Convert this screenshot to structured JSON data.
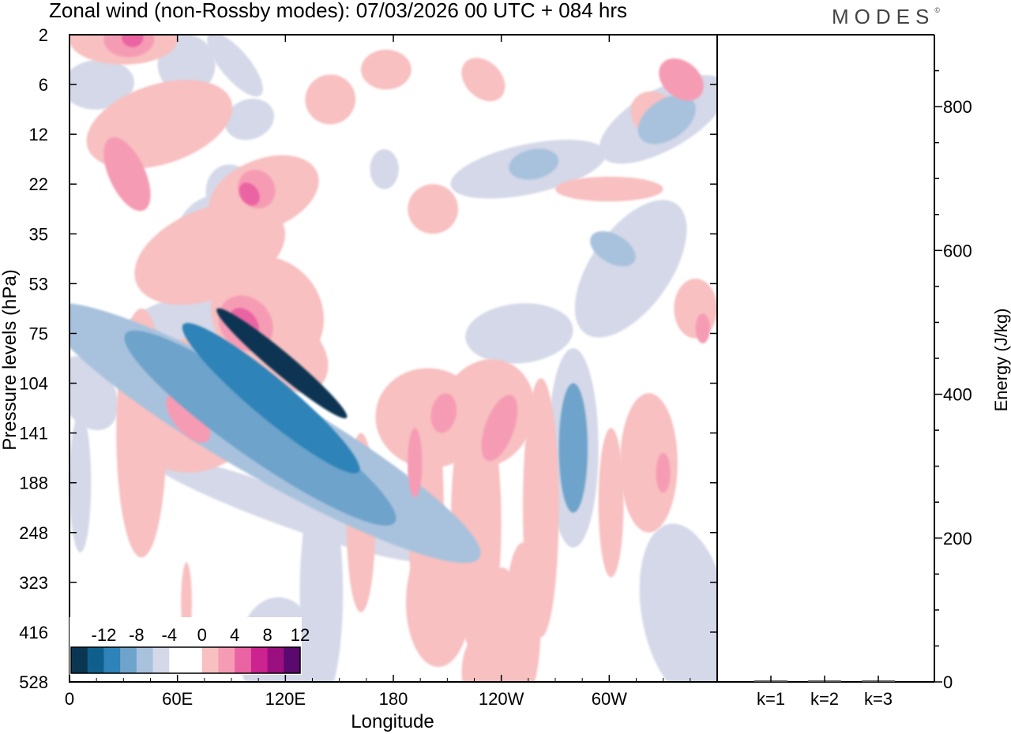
{
  "title": {
    "text": "Zonal wind (non-Rossby modes):  07/03/2026  00 UTC  + 084 hrs"
  },
  "brand": {
    "name": "MODES",
    "mark": "©"
  },
  "chart_data": [
    {
      "type": "heatmap",
      "title": "Zonal wind (non-Rossby modes):  07/03/2026  00 UTC  + 084 hrs",
      "xlabel": "Longitude",
      "ylabel": "Pressure levels (hPa)",
      "x_ticks": [
        "0",
        "60E",
        "120E",
        "180",
        "120W",
        "60W"
      ],
      "x_tick_degrees": [
        0,
        60,
        120,
        180,
        240,
        300
      ],
      "xlim": [
        0,
        360
      ],
      "y_ticks": [
        "2",
        "6",
        "12",
        "22",
        "35",
        "53",
        "75",
        "104",
        "141",
        "188",
        "248",
        "323",
        "416",
        "528"
      ],
      "colorbar": {
        "labels": [
          "-12",
          "-8",
          "-4",
          "0",
          "4",
          "8",
          "12"
        ],
        "colors": [
          "#0a3652",
          "#0f5f8c",
          "#2e83b8",
          "#6ea3cb",
          "#a8c2dd",
          "#d4d8e8",
          "#ffffff",
          "#ffffff",
          "#f8c0c0",
          "#f69bb4",
          "#ea63a2",
          "#cc2390",
          "#9c0f80",
          "#5a0a6e"
        ]
      },
      "blobs": [
        {
          "lon": 118,
          "lev": 6.6,
          "dlon": 6,
          "dlev": 1.7,
          "angle": -50,
          "cls": -6
        },
        {
          "lon": 112,
          "lev": 7.3,
          "dlon": 11,
          "dlev": 2.3,
          "angle": -50,
          "cls": -4
        },
        {
          "lon": 106,
          "lev": 7.9,
          "dlon": 17,
          "dlev": 3.3,
          "angle": -55,
          "cls": -3
        },
        {
          "lon": 108,
          "lev": 8.0,
          "dlon": 24,
          "dlev": 5.0,
          "angle": -60,
          "cls": -2
        },
        {
          "lon": 120,
          "lev": 9.5,
          "dlon": 10,
          "dlev": 3.0,
          "angle": -70,
          "cls": -1
        },
        {
          "lon": 98,
          "lev": 5.2,
          "dlon": 18,
          "dlev": 1.1,
          "angle": -28,
          "cls": -1
        },
        {
          "lon": 85,
          "lev": 4.2,
          "dlon": 26,
          "dlev": 1.0,
          "angle": -25,
          "cls": -1
        },
        {
          "lon": 60,
          "lev": 6.0,
          "dlon": 38,
          "dlev": 0.7,
          "angle": -18,
          "cls": -1
        },
        {
          "lon": 10,
          "lev": 7.2,
          "dlon": 15,
          "dlev": 0.8,
          "angle": -30,
          "cls": -1
        },
        {
          "lon": 16,
          "lev": 1.0,
          "dlon": 20,
          "dlev": 0.5,
          "angle": -5,
          "cls": -1
        },
        {
          "lon": 65,
          "lev": 0.6,
          "dlon": 16,
          "dlev": 0.6,
          "angle": -10,
          "cls": -1
        },
        {
          "lon": 90,
          "lev": 3.2,
          "dlon": 14,
          "dlev": 0.6,
          "angle": -15,
          "cls": -1
        },
        {
          "lon": 6,
          "lev": 9.0,
          "dlon": 6,
          "dlev": 1.4,
          "angle": 0,
          "cls": -1
        },
        {
          "lon": 140,
          "lev": 11.2,
          "dlon": 12,
          "dlev": 2.2,
          "angle": 0,
          "cls": -1
        },
        {
          "lon": 116,
          "lev": 12.4,
          "dlon": 22,
          "dlev": 1.1,
          "angle": 0,
          "cls": -1
        },
        {
          "lon": 280,
          "lev": 8.3,
          "dlon": 8,
          "dlev": 1.3,
          "angle": 0,
          "cls": -3
        },
        {
          "lon": 280,
          "lev": 8.3,
          "dlon": 14,
          "dlev": 2.0,
          "angle": 0,
          "cls": -1
        },
        {
          "lon": 342,
          "lev": 11.6,
          "dlon": 24,
          "dlev": 1.8,
          "angle": -10,
          "cls": -1
        },
        {
          "lon": 312,
          "lev": 4.7,
          "dlon": 44,
          "dlev": 0.8,
          "angle": -55,
          "cls": -1
        },
        {
          "lon": 302,
          "lev": 4.3,
          "dlon": 8,
          "dlev": 0.5,
          "angle": -60,
          "cls": -2
        },
        {
          "lon": 330,
          "lev": 1.7,
          "dlon": 40,
          "dlev": 0.6,
          "angle": -30,
          "cls": -1
        },
        {
          "lon": 332,
          "lev": 1.7,
          "dlon": 18,
          "dlev": 0.4,
          "angle": -35,
          "cls": -2
        },
        {
          "lon": 255,
          "lev": 2.7,
          "dlon": 44,
          "dlev": 0.5,
          "angle": -12,
          "cls": -1
        },
        {
          "lon": 258,
          "lev": 2.6,
          "dlon": 14,
          "dlev": 0.3,
          "angle": -12,
          "cls": -2
        },
        {
          "lon": 250,
          "lev": 6.0,
          "dlon": 30,
          "dlev": 0.6,
          "angle": -5,
          "cls": -1
        },
        {
          "lon": 92,
          "lev": 0.6,
          "dlon": 8,
          "dlev": 0.8,
          "angle": -40,
          "cls": -1
        },
        {
          "lon": 100,
          "lev": 1.7,
          "dlon": 14,
          "dlev": 0.4,
          "angle": -20,
          "cls": -1
        },
        {
          "lon": 175,
          "lev": 2.7,
          "dlon": 8,
          "dlev": 0.4,
          "angle": 0,
          "cls": -1
        },
        {
          "lon": 108,
          "lev": 3.2,
          "dlon": 32,
          "dlev": 0.7,
          "angle": -22,
          "cls": 1
        },
        {
          "lon": 104,
          "lev": 3.1,
          "dlon": 10,
          "dlev": 0.4,
          "angle": -35,
          "cls": 2
        },
        {
          "lon": 100,
          "lev": 3.2,
          "dlon": 5,
          "dlev": 0.25,
          "angle": -35,
          "cls": 3
        },
        {
          "lon": 78,
          "lev": 4.4,
          "dlon": 44,
          "dlev": 0.9,
          "angle": -22,
          "cls": 1
        },
        {
          "lon": 50,
          "lev": 1.8,
          "dlon": 42,
          "dlev": 0.8,
          "angle": -18,
          "cls": 1
        },
        {
          "lon": 32,
          "lev": 2.8,
          "dlon": 10,
          "dlev": 0.8,
          "angle": -25,
          "cls": 2
        },
        {
          "lon": 110,
          "lev": 5.6,
          "dlon": 30,
          "dlev": 1.2,
          "angle": -40,
          "cls": 1
        },
        {
          "lon": 98,
          "lev": 5.8,
          "dlon": 14,
          "dlev": 0.6,
          "angle": -40,
          "cls": 2
        },
        {
          "lon": 97,
          "lev": 5.8,
          "dlon": 7,
          "dlev": 0.35,
          "angle": -40,
          "cls": 3
        },
        {
          "lon": 72,
          "lev": 7.4,
          "dlon": 42,
          "dlev": 1.3,
          "angle": -40,
          "cls": 1
        },
        {
          "lon": 66,
          "lev": 7.7,
          "dlon": 8,
          "dlev": 0.6,
          "angle": -40,
          "cls": 2
        },
        {
          "lon": 122,
          "lev": 6.4,
          "dlon": 18,
          "dlev": 0.9,
          "angle": -45,
          "cls": 1
        },
        {
          "lon": 30,
          "lev": 0.1,
          "dlon": 30,
          "dlev": 0.5,
          "angle": 0,
          "cls": 1
        },
        {
          "lon": 33,
          "lev": 0.1,
          "dlon": 14,
          "dlev": 0.35,
          "angle": 0,
          "cls": 2
        },
        {
          "lon": 35,
          "lev": 0.05,
          "dlon": 6,
          "dlev": 0.2,
          "angle": 0,
          "cls": 3
        },
        {
          "lon": 40,
          "lev": 8.0,
          "dlon": 14,
          "dlev": 2.5,
          "angle": 0,
          "cls": 1
        },
        {
          "lon": 200,
          "lev": 7.7,
          "dlon": 30,
          "dlev": 1.0,
          "angle": 10,
          "cls": 1
        },
        {
          "lon": 208,
          "lev": 7.6,
          "dlon": 7,
          "dlev": 0.4,
          "angle": 10,
          "cls": 2
        },
        {
          "lon": 232,
          "lev": 7.6,
          "dlon": 26,
          "dlev": 1.1,
          "angle": 20,
          "cls": 1
        },
        {
          "lon": 239,
          "lev": 7.9,
          "dlon": 8,
          "dlev": 0.7,
          "angle": 20,
          "cls": 2
        },
        {
          "lon": 198,
          "lev": 9.5,
          "dlon": 10,
          "dlev": 2.4,
          "angle": 0,
          "cls": 1
        },
        {
          "lon": 192,
          "lev": 8.6,
          "dlon": 4,
          "dlev": 0.7,
          "angle": 0,
          "cls": 2
        },
        {
          "lon": 226,
          "lev": 9.8,
          "dlon": 14,
          "dlev": 2.6,
          "angle": 0,
          "cls": 1
        },
        {
          "lon": 262,
          "lev": 9.5,
          "dlon": 10,
          "dlev": 2.6,
          "angle": 0,
          "cls": 1
        },
        {
          "lon": 252,
          "lev": 11.8,
          "dlon": 10,
          "dlev": 1.6,
          "angle": 0,
          "cls": 1
        },
        {
          "lon": 205,
          "lev": 11.4,
          "dlon": 18,
          "dlev": 1.3,
          "angle": 0,
          "cls": 1
        },
        {
          "lon": 240,
          "lev": 12.3,
          "dlon": 14,
          "dlev": 1.6,
          "angle": 0,
          "cls": 1
        },
        {
          "lon": 162,
          "lev": 9.8,
          "dlon": 8,
          "dlev": 1.8,
          "angle": 0,
          "cls": 1
        },
        {
          "lon": 301,
          "lev": 9.4,
          "dlon": 7,
          "dlev": 1.5,
          "angle": 0,
          "cls": 1
        },
        {
          "lon": 322,
          "lev": 8.6,
          "dlon": 16,
          "dlev": 1.4,
          "angle": 0,
          "cls": 1
        },
        {
          "lon": 330,
          "lev": 8.8,
          "dlon": 4,
          "dlev": 0.4,
          "angle": 0,
          "cls": 2
        },
        {
          "lon": 348,
          "lev": 5.5,
          "dlon": 12,
          "dlev": 0.6,
          "angle": 0,
          "cls": 1
        },
        {
          "lon": 352,
          "lev": 5.9,
          "dlon": 4,
          "dlev": 0.3,
          "angle": 0,
          "cls": 2
        },
        {
          "lon": 325,
          "lev": 1.6,
          "dlon": 12,
          "dlev": 0.5,
          "angle": -50,
          "cls": 1
        },
        {
          "lon": 340,
          "lev": 0.9,
          "dlon": 10,
          "dlev": 0.5,
          "angle": -50,
          "cls": 2
        },
        {
          "lon": 300,
          "lev": 3.1,
          "dlon": 30,
          "dlev": 0.25,
          "angle": 0,
          "cls": 1
        },
        {
          "lon": 202,
          "lev": 3.5,
          "dlon": 14,
          "dlev": 0.5,
          "angle": 0,
          "cls": 1
        },
        {
          "lon": 145,
          "lev": 1.3,
          "dlon": 14,
          "dlev": 0.5,
          "angle": -20,
          "cls": 1
        },
        {
          "lon": 176,
          "lev": 0.7,
          "dlon": 14,
          "dlev": 0.4,
          "angle": 0,
          "cls": 1
        },
        {
          "lon": 230,
          "lev": 0.9,
          "dlon": 10,
          "dlev": 0.5,
          "angle": -45,
          "cls": 1
        },
        {
          "lon": 65,
          "lev": 11.4,
          "dlon": 3,
          "dlev": 0.8,
          "angle": 0,
          "cls": 1
        },
        {
          "lon": 230,
          "lev": 12.8,
          "dlon": 12,
          "dlev": 0.8,
          "angle": 0,
          "cls": 1
        }
      ]
    },
    {
      "type": "bar",
      "categories": [
        "k=1",
        "k=2",
        "k=3"
      ],
      "values": [
        1,
        1,
        1
      ],
      "ylabel": "Energy (J/kg)",
      "ylim": [
        0,
        900
      ],
      "y_ticks": [
        0,
        200,
        400,
        600,
        800
      ]
    }
  ]
}
